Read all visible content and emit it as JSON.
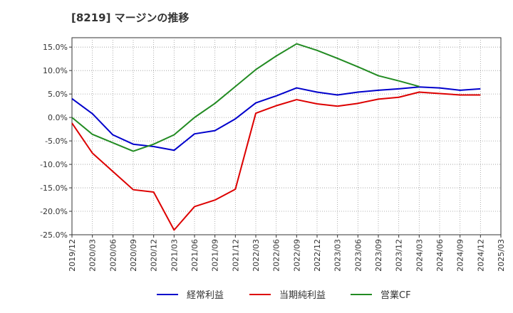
{
  "chart_data": {
    "type": "line",
    "title": "[8219]  マージンの推移",
    "xlabel": "",
    "ylabel": "",
    "x": [
      "2019/12",
      "2020/03",
      "2020/06",
      "2020/09",
      "2020/12",
      "2021/03",
      "2021/06",
      "2021/09",
      "2021/12",
      "2022/03",
      "2022/06",
      "2022/09",
      "2022/12",
      "2023/03",
      "2023/06",
      "2023/09",
      "2023/12",
      "2024/03",
      "2024/06",
      "2024/09",
      "2024/12",
      "2025/03"
    ],
    "x_tick_labels": [
      "2019/12",
      "2020/03",
      "2020/06",
      "2020/09",
      "2020/12",
      "2021/03",
      "2021/06",
      "2021/09",
      "2021/12",
      "2022/03",
      "2022/06",
      "2022/09",
      "2022/12",
      "2023/03",
      "2023/06",
      "2023/09",
      "2023/12",
      "2024/03",
      "2024/06",
      "2024/09",
      "2024/12",
      "2025/03"
    ],
    "ylim": [
      -25,
      17
    ],
    "y_ticks": [
      15,
      10,
      5,
      0,
      -5,
      -10,
      -15,
      -20,
      -25
    ],
    "y_tick_labels": [
      "15.0%",
      "10.0%",
      "5.0%",
      "0.0%",
      "-5.0%",
      "-10.0%",
      "-15.0%",
      "-20.0%",
      "-25.0%"
    ],
    "grid": true,
    "legend_position": "bottom",
    "series": [
      {
        "name": "経常利益",
        "color": "#0000cc",
        "values": [
          4.0,
          0.8,
          -3.7,
          -5.7,
          -6.2,
          -7.0,
          -3.5,
          -2.8,
          -0.3,
          3.1,
          4.6,
          6.3,
          5.4,
          4.8,
          5.4,
          5.8,
          6.1,
          6.5,
          6.3,
          5.8,
          6.1,
          null
        ]
      },
      {
        "name": "当期純利益",
        "color": "#dd0000",
        "values": [
          -1.2,
          -7.6,
          -11.5,
          -15.4,
          -15.9,
          -24.0,
          -19.0,
          -17.6,
          -15.3,
          0.9,
          2.5,
          3.8,
          2.9,
          2.4,
          3.0,
          3.9,
          4.3,
          5.4,
          5.1,
          4.8,
          4.8,
          null
        ]
      },
      {
        "name": "営業CF",
        "color": "#228b22",
        "values": [
          0.0,
          -3.6,
          -5.4,
          -7.2,
          -5.7,
          -3.7,
          0.0,
          3.0,
          6.6,
          10.2,
          13.1,
          15.7,
          14.3,
          12.6,
          10.8,
          8.9,
          7.8,
          6.6,
          null,
          null,
          null,
          null
        ]
      }
    ]
  }
}
